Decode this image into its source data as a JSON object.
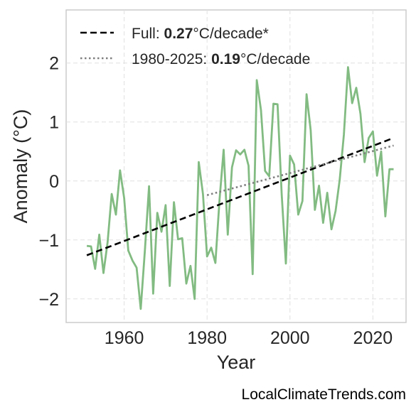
{
  "chart_data": {
    "type": "line",
    "xlabel": "Year",
    "ylabel": "Anomaly (°C)",
    "xlim": [
      1946,
      2028
    ],
    "ylim": [
      -2.4,
      2.9
    ],
    "x_ticks": [
      1960,
      1980,
      2000,
      2020
    ],
    "y_ticks": [
      -2,
      -1,
      0,
      1,
      2
    ],
    "y_tick_labels": [
      "−2",
      "−1",
      "0",
      "1",
      "2"
    ],
    "grid": true,
    "legend_position": "top-left",
    "series": [
      {
        "color": "#82bb82",
        "x": [
          1951,
          1952,
          1953,
          1954,
          1955,
          1956,
          1957,
          1958,
          1959,
          1960,
          1961,
          1962,
          1963,
          1964,
          1965,
          1966,
          1967,
          1968,
          1969,
          1970,
          1971,
          1972,
          1973,
          1974,
          1975,
          1976,
          1977,
          1978,
          1979,
          1980,
          1981,
          1982,
          1983,
          1984,
          1985,
          1986,
          1987,
          1988,
          1989,
          1990,
          1991,
          1992,
          1993,
          1994,
          1995,
          1996,
          1997,
          1998,
          1999,
          2000,
          2001,
          2002,
          2003,
          2004,
          2005,
          2006,
          2007,
          2008,
          2009,
          2010,
          2011,
          2012,
          2013,
          2014,
          2015,
          2016,
          2017,
          2018,
          2019,
          2020,
          2021,
          2022,
          2023,
          2024,
          2025
        ],
        "y": [
          -1.1,
          -1.11,
          -1.49,
          -0.91,
          -1.56,
          -1.04,
          -0.22,
          -0.57,
          0.18,
          -0.29,
          -1.18,
          -1.35,
          -1.47,
          -2.17,
          -1.17,
          -0.09,
          -1.91,
          -0.54,
          -0.86,
          -0.41,
          -1.78,
          -0.36,
          -0.99,
          -0.97,
          -1.74,
          -1.44,
          -2.0,
          0.32,
          -0.22,
          -1.28,
          -1.13,
          -1.39,
          -0.32,
          0.53,
          -0.91,
          0.23,
          0.52,
          0.45,
          0.53,
          0.26,
          -1.58,
          1.71,
          1.2,
          0.17,
          0.08,
          1.31,
          1.3,
          -0.22,
          -1.4,
          0.43,
          0.28,
          -0.57,
          -0.34,
          1.47,
          0.86,
          -0.49,
          -0.08,
          -0.71,
          -0.2,
          -0.82,
          -0.51,
          0.02,
          0.79,
          1.93,
          1.32,
          1.58,
          1.14,
          0.32,
          0.73,
          0.84,
          0.09,
          0.5,
          -0.6,
          0.2,
          0.2
        ]
      },
      {
        "name": "Full",
        "style": "dashed",
        "color": "#000000",
        "x": [
          1951,
          2025
        ],
        "y": [
          -1.26,
          0.73
        ]
      },
      {
        "name": "1980-2025",
        "style": "dotted",
        "color": "#7f7f7f",
        "x": [
          1980,
          2025
        ],
        "y": [
          -0.24,
          0.6
        ]
      }
    ],
    "legend": [
      {
        "prefix": "Full: ",
        "value": "0.27",
        "suffix": "°C/decade*",
        "style": "dashed",
        "color": "#000000"
      },
      {
        "prefix": "1980-2025: ",
        "value": "0.19",
        "suffix": "°C/decade",
        "style": "dotted",
        "color": "#7f7f7f"
      }
    ]
  },
  "credit": "LocalClimateTrends.com"
}
